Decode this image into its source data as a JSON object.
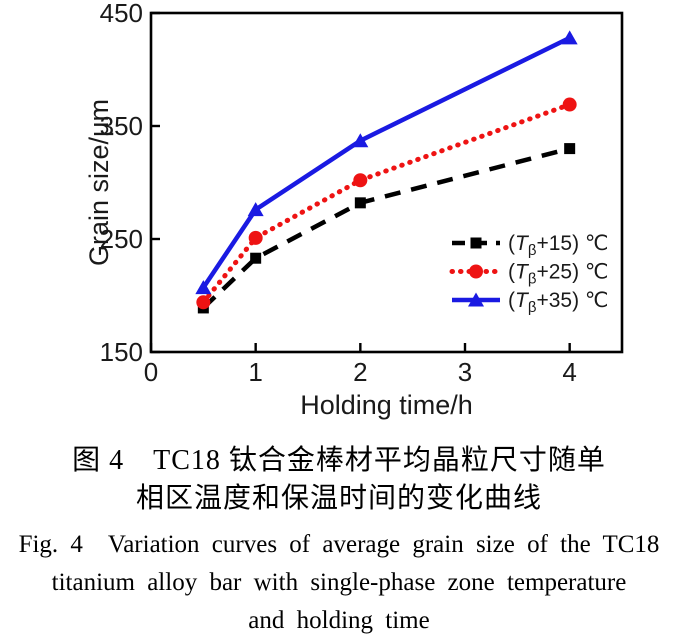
{
  "figure": {
    "caption_zh_line1": "图 4　TC18 钛合金棒材平均晶粒尺寸随单",
    "caption_zh_line2": "相区温度和保温时间的变化曲线",
    "caption_en_line1": "Fig. 4　Variation curves of average grain size of the TC18",
    "caption_en_line2": "titanium alloy bar with single-phase zone temperature",
    "caption_en_line3": "and holding time"
  },
  "chart_data": {
    "type": "line",
    "xlabel": "Holding time/h",
    "ylabel": "Grain size/μm",
    "xlim": [
      0,
      4.5
    ],
    "ylim": [
      150,
      450
    ],
    "x_ticks": [
      "0",
      "1",
      "2",
      "3",
      "4"
    ],
    "x_tick_values": [
      0,
      1,
      2,
      3,
      4
    ],
    "y_ticks": [
      "150",
      "250",
      "350",
      "450"
    ],
    "y_tick_values": [
      150,
      250,
      350,
      450
    ],
    "grid": false,
    "legend_position": "lower right",
    "x": [
      0.5,
      1,
      2,
      4
    ],
    "series": [
      {
        "name": "(Tβ+15) ℃",
        "label_parts": {
          "pre": "(",
          "var": "T",
          "sub": "β",
          "post": "+15) ℃"
        },
        "values": [
          189,
          233,
          282,
          330
        ],
        "color": "#000000",
        "line_style": "dashed",
        "marker": "square",
        "key": "tb15"
      },
      {
        "name": "(Tβ+25) ℃",
        "label_parts": {
          "pre": "(",
          "var": "T",
          "sub": "β",
          "post": "+25) ℃"
        },
        "values": [
          194,
          251,
          302,
          369
        ],
        "color": "#ee1313",
        "line_style": "dotted",
        "marker": "circle",
        "key": "tb25"
      },
      {
        "name": "(Tβ+35) ℃",
        "label_parts": {
          "pre": "(",
          "var": "T",
          "sub": "β",
          "post": "+35) ℃"
        },
        "values": [
          207,
          276,
          337,
          428
        ],
        "color": "#1a1ae2",
        "line_style": "solid",
        "marker": "triangle",
        "key": "tb35"
      }
    ],
    "text_color": "#1a1a1a"
  }
}
